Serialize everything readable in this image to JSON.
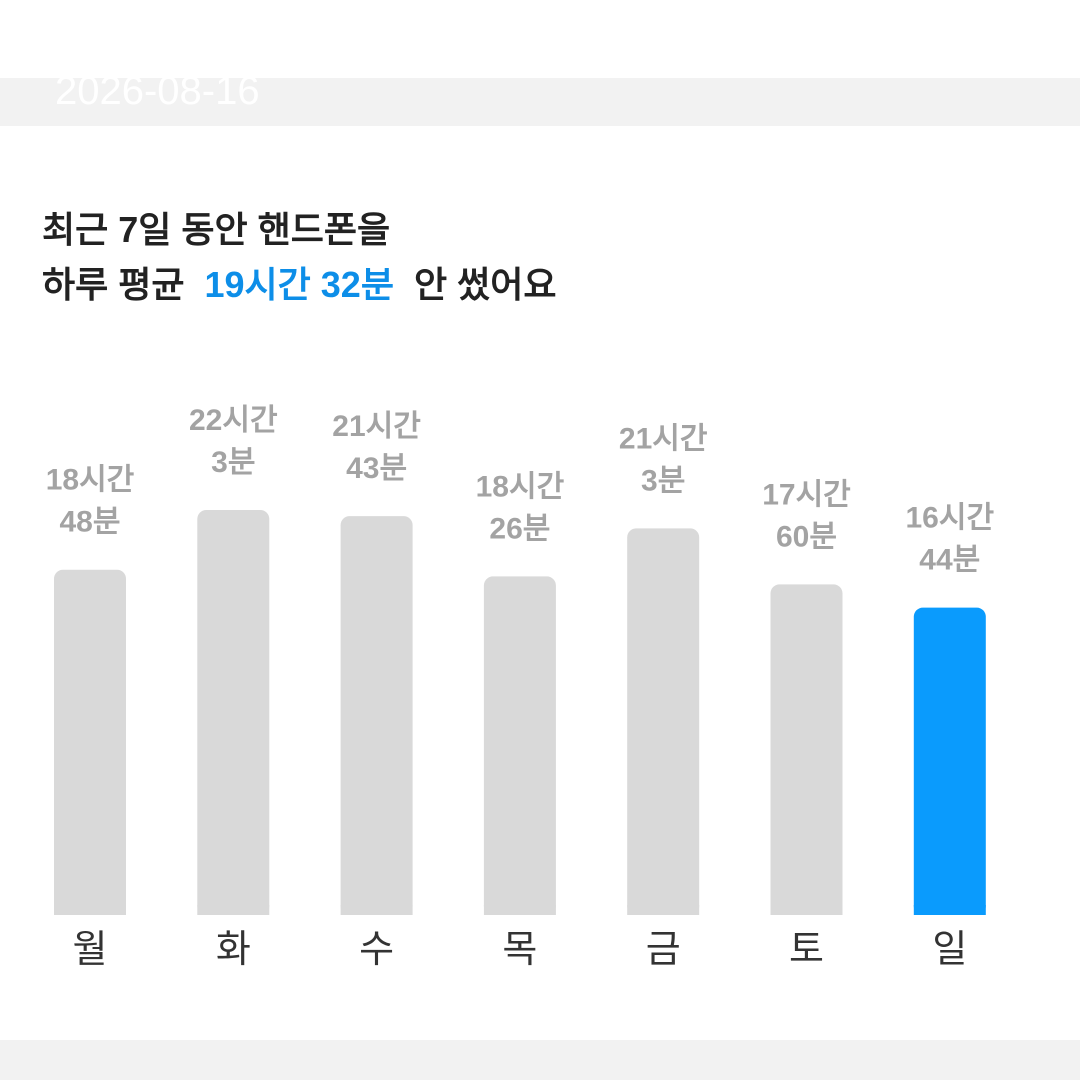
{
  "header": {
    "date": "2026-08-16"
  },
  "chart_data": {
    "type": "bar",
    "title_line1": "최근 7일 동안 핸드폰을",
    "title_line2": {
      "before": "하루 평균",
      "highlight": "19시간 32분",
      "after": "안 썼어요",
      "highlight_color": "#0d8ee8"
    },
    "categories": [
      "월",
      "화",
      "수",
      "목",
      "금",
      "토",
      "일"
    ],
    "values": [
      1128,
      1323,
      1303,
      1106,
      1263,
      1080,
      1004
    ],
    "value_labels": [
      [
        "18시간",
        "48분"
      ],
      [
        "22시간",
        "3분"
      ],
      [
        "21시간",
        "43분"
      ],
      [
        "18시간",
        "26분"
      ],
      [
        "21시간",
        "3분"
      ],
      [
        "17시간",
        "60분"
      ],
      [
        "16시간",
        "44분"
      ]
    ],
    "colors": [
      "#d9d9d9",
      "#d9d9d9",
      "#d9d9d9",
      "#d9d9d9",
      "#d9d9d9",
      "#d9d9d9",
      "#0a9bfd"
    ]
  }
}
